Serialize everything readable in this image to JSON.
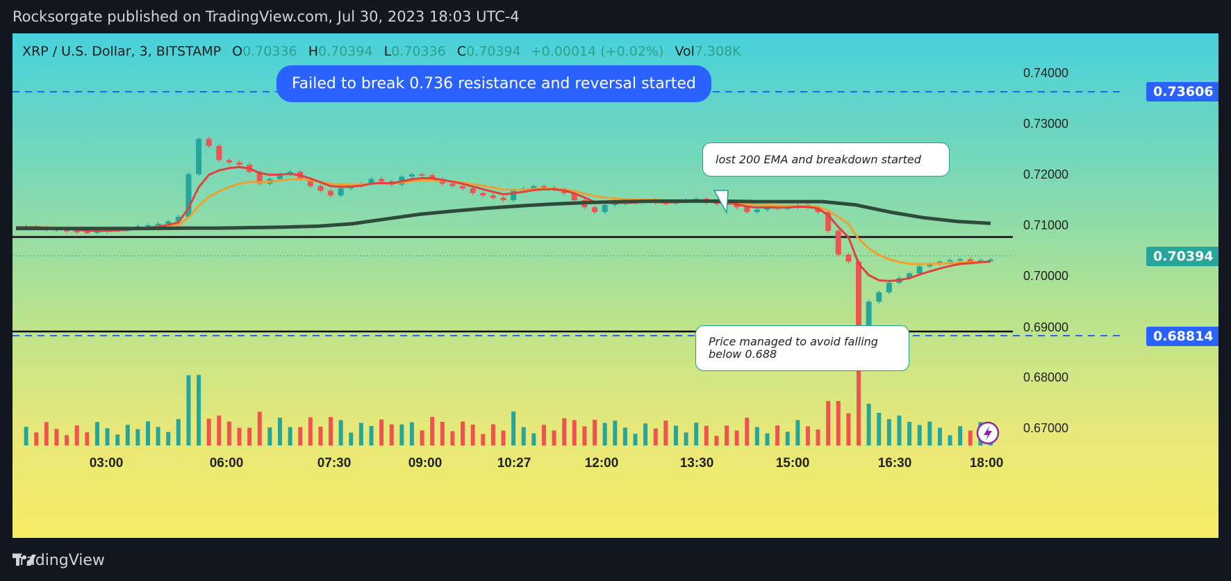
{
  "header": "Rocksorgate published on TradingView.com, Jul 30, 2023 18:03 UTC-4",
  "footer_brand": "TradingView",
  "symbol": {
    "name": "XRP / U.S. Dollar, 3, BITSTAMP",
    "o_label": "O",
    "o": "0.70336",
    "h_label": "H",
    "h": "0.70394",
    "l_label": "L",
    "l": "0.70336",
    "c_label": "C",
    "c": "0.70394",
    "change": "+0.00014 (+0.02%)",
    "vol_label": "Vol",
    "vol": "7.308K"
  },
  "annotations": {
    "blue": "Failed to break 0.736 resistance and reversal started",
    "ema": "lost 200 EMA and breakdown started",
    "support": "Price managed to avoid falling below 0.688"
  },
  "price_labels": {
    "resistance": "0.73606",
    "current": "0.70394",
    "support": "0.68814"
  },
  "colors": {
    "up": "#26a69a",
    "down": "#ef5350",
    "ema_fast": "#e0413f",
    "ema_mid": "#f0a030",
    "ema_slow": "#2f4a3a",
    "dashed": "#2962ff"
  },
  "chart_data": {
    "type": "candlestick",
    "y_axis_ticks": [
      "0.74000",
      "0.73000",
      "0.72000",
      "0.71000",
      "0.70000",
      "0.69000",
      "0.68000",
      "0.67000"
    ],
    "x_axis_ticks": [
      "03:00",
      "06:00",
      "07:30",
      "09:00",
      "10:27",
      "12:00",
      "13:30",
      "15:00",
      "16:30",
      "18:00"
    ],
    "ylim": [
      0.665,
      0.743
    ],
    "horizontal_lines": {
      "dashed": [
        0.73606,
        0.68814
      ],
      "solid": [
        0.7074,
        0.6888
      ]
    },
    "close_series": [
      0.7108,
      0.7109,
      0.7107,
      0.7104,
      0.7102,
      0.71,
      0.7098,
      0.7097,
      0.7099,
      0.7101,
      0.7103,
      0.7105,
      0.711,
      0.7112,
      0.7115,
      0.712,
      0.713,
      0.722,
      0.7295,
      0.728,
      0.725,
      0.7245,
      0.724,
      0.7225,
      0.72,
      0.721,
      0.722,
      0.7225,
      0.721,
      0.7195,
      0.7185,
      0.7175,
      0.719,
      0.7195,
      0.72,
      0.721,
      0.7205,
      0.7198,
      0.7215,
      0.722,
      0.7218,
      0.721,
      0.72,
      0.7195,
      0.719,
      0.718,
      0.7175,
      0.717,
      0.7165,
      0.7185,
      0.719,
      0.7195,
      0.7192,
      0.7188,
      0.718,
      0.7165,
      0.715,
      0.714,
      0.7155,
      0.7158,
      0.716,
      0.7162,
      0.7165,
      0.716,
      0.7158,
      0.7162,
      0.7165,
      0.7168,
      0.716,
      0.7158,
      0.7155,
      0.715,
      0.714,
      0.7145,
      0.715,
      0.7148,
      0.715,
      0.7155,
      0.715,
      0.714,
      0.71,
      0.705,
      0.7035,
      0.69,
      0.695,
      0.697,
      0.699,
      0.7,
      0.701,
      0.7025,
      0.703,
      0.7035,
      0.7038,
      0.704,
      0.7035,
      0.7038,
      0.7039
    ],
    "ema_200": [
      0.7105,
      0.7105,
      0.7105,
      0.7105,
      0.7105,
      0.7106,
      0.7106,
      0.7107,
      0.7108,
      0.711,
      0.7115,
      0.7125,
      0.7135,
      0.7142,
      0.7148,
      0.7153,
      0.7157,
      0.716,
      0.7162,
      0.7163,
      0.7163,
      0.7163,
      0.7162,
      0.7162,
      0.7162,
      0.7155,
      0.714,
      0.7128,
      0.712,
      0.7116
    ],
    "volume_note": "Volume bars shown at bottom; spike near 16:00"
  }
}
